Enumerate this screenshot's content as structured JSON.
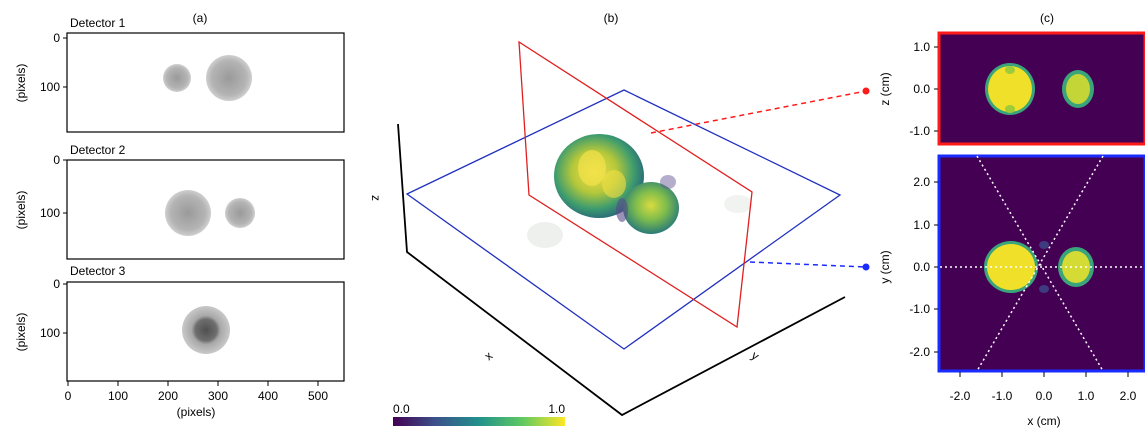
{
  "panel_a": {
    "label": "(a)",
    "detectors": [
      {
        "title": "Detector 1",
        "ylabel": "(pixels)",
        "yticks": [
          "0",
          "100"
        ]
      },
      {
        "title": "Detector 2",
        "ylabel": "(pixels)",
        "yticks": [
          "0",
          "100"
        ]
      },
      {
        "title": "Detector 3",
        "ylabel": "(pixels)",
        "yticks": [
          "0",
          "100"
        ]
      }
    ],
    "xticks": [
      "0",
      "100",
      "200",
      "300",
      "400",
      "500"
    ],
    "xlabel": "(pixels)"
  },
  "panel_b": {
    "label": "(b)",
    "axis_x": "x",
    "axis_y": "y",
    "axis_z": "z",
    "colorbar": {
      "min_label": "0.0",
      "max_label": "1.0"
    },
    "colors": {
      "xz_plane": "#e02020",
      "xy_plane": "#2030c0"
    }
  },
  "panel_c": {
    "label": "(c)",
    "top": {
      "ylabel": "z (cm)",
      "yticks": [
        "1.0",
        "0.0",
        "-1.0"
      ],
      "border_color": "#ff1a1a"
    },
    "bottom": {
      "ylabel": "y (cm)",
      "yticks": [
        "2.0",
        "1.0",
        "0.0",
        "-1.0",
        "-2.0"
      ],
      "xticks": [
        "-2.0",
        "-1.0",
        "0.0",
        "1.0",
        "2.0"
      ],
      "xlabel": "x (cm)",
      "border_color": "#1a2bff"
    },
    "background": "#440154"
  }
}
